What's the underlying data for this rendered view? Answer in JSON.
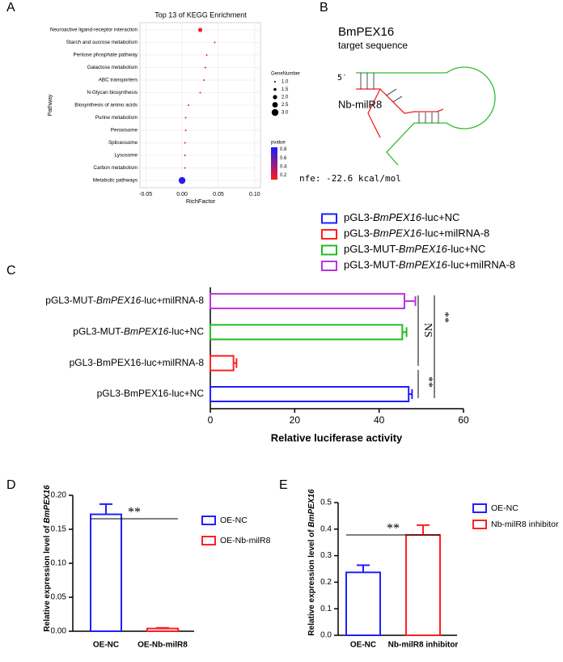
{
  "chart_data": [
    {
      "panel": "A",
      "type": "scatter",
      "title": "Top 13 of KEGG Enrichment",
      "x_label": "RichFactor",
      "y_label": "Pathway",
      "categories": [
        "Neuroactive ligand-receptor interaction",
        "Starch and sucrose metabolism",
        "Pentose phosphate pathway",
        "Galactose metabolism",
        "ABC transporters",
        "N-Glycan biosynthesis",
        "Biosynthesis of amino acids",
        "Purine metabolism",
        "Peroxisome",
        "Spliceosome",
        "Lysosome",
        "Carbon metabolism",
        "Metabolic pathways"
      ],
      "values": [
        0.025,
        0.045,
        0.034,
        0.032,
        0.03,
        0.025,
        0.009,
        0.005,
        0.005,
        0.004,
        0.004,
        0.004,
        0.0
      ],
      "sizes": [
        2,
        1,
        1,
        1,
        1,
        1,
        1,
        1,
        1,
        1,
        1,
        1,
        3
      ],
      "pvalues": [
        0.1,
        0.12,
        0.12,
        0.12,
        0.13,
        0.13,
        0.15,
        0.15,
        0.15,
        0.15,
        0.15,
        0.15,
        0.8
      ],
      "xlim": [
        -0.058,
        0.108
      ],
      "xticks": [
        -0.05,
        {
          "value": 0,
          "label": "0.00"
        },
        0.05,
        {
          "value": 0.1,
          "label": "0.10"
        }
      ],
      "grid": true,
      "size_legend": {
        "title": "GeneNumber",
        "values": [
          {
            "value": 1,
            "label": "1.0"
          },
          1.5,
          {
            "value": 2,
            "label": "2.0"
          },
          2.5,
          {
            "value": 3,
            "label": "3.0"
          }
        ]
      },
      "color_legend": {
        "title": "pvalue",
        "ticks": [
          0.8,
          0.6,
          0.4,
          0.2
        ],
        "lim": [
          0.1,
          0.85
        ],
        "colors": [
          "#ff1a1a",
          "#1a1aff"
        ]
      }
    },
    {
      "panel": "C",
      "type": "hbar",
      "categories": [
        "pGL3-BmPEX16-luc+NC",
        "pGL3-BmPEX16-luc+milRNA-8",
        "pGL3-MUT-BmPEX16-luc+NC",
        "pGL3-MUT-BmPEX16-luc+milRNA-8"
      ],
      "values": [
        47,
        5.5,
        45.5,
        46
      ],
      "errors": [
        0.8,
        0.7,
        1.0,
        2.6
      ],
      "colors": [
        "#1f1fff",
        "#ff2020",
        "#22bb22",
        "#bb33dd"
      ],
      "xlim": [
        0,
        60
      ],
      "xticks": [
        0,
        20,
        40,
        60
      ],
      "x_label": "Relative luciferase activity",
      "annotations": [
        "NS",
        "**",
        "**"
      ]
    },
    {
      "panel": "D",
      "type": "bar",
      "categories": [
        "OE-NC",
        "OE-Nb-milR8"
      ],
      "values": [
        0.172,
        0.004
      ],
      "errors": [
        0.015,
        0.001
      ],
      "colors": [
        "#1f1fff",
        "#ff2020"
      ],
      "ylim": [
        0,
        0.2
      ],
      "yticks": [
        {
          "value": 0,
          "label": "0.00"
        },
        0.05,
        {
          "value": 0.1,
          "label": "0.10"
        },
        0.15,
        {
          "value": 0.2,
          "label": "0.20"
        }
      ],
      "y_label": "Relative expression level of BmPEX16",
      "annotations": [
        "**"
      ]
    },
    {
      "panel": "E",
      "type": "bar",
      "categories": [
        "OE-NC",
        "Nb-milR8 inhibitor"
      ],
      "values": [
        0.237,
        0.378
      ],
      "errors": [
        0.027,
        0.037
      ],
      "colors": [
        "#1f1fff",
        "#ff2020"
      ],
      "ylim": [
        0,
        0.5
      ],
      "yticks": [
        {
          "value": 0,
          "label": "0.0"
        },
        0.1,
        0.2,
        0.3,
        0.4,
        0.5
      ],
      "y_label": "Relative expression level of BmPEX16",
      "annotations": [
        "**"
      ]
    }
  ],
  "diagram": {
    "panel": "B",
    "target_name": "BmPEX16",
    "target_label": "target sequence",
    "mirna_name": "Nb-milR8",
    "five_prime": "5′",
    "mfe": "nfe: -22.6 kcal/mol"
  }
}
